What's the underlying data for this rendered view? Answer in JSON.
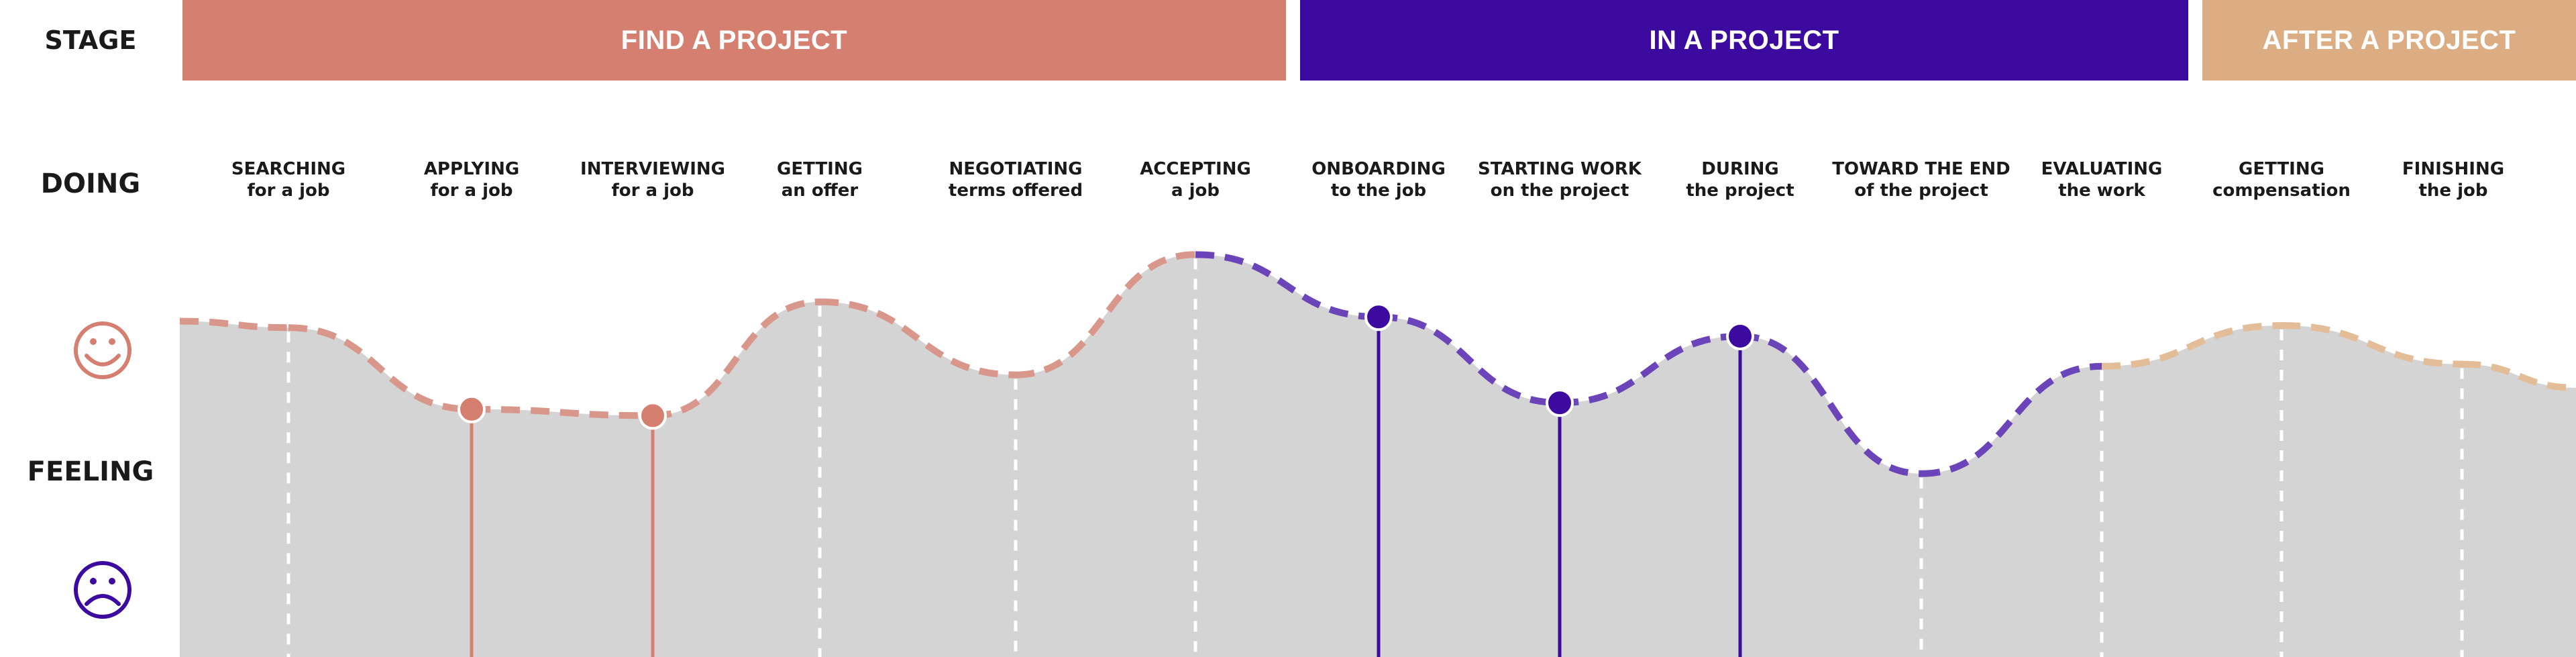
{
  "labels": {
    "stage": "STAGE",
    "doing": "DOING",
    "feeling": "FEELING"
  },
  "stages": [
    {
      "label": "FIND A PROJECT",
      "color": "#d47f70"
    },
    {
      "label": "IN A PROJECT",
      "color": "#3d0aa0"
    },
    {
      "label": "AFTER A PROJECT",
      "color": "#dcac83"
    }
  ],
  "steps": [
    {
      "title": "SEARCHING",
      "subtitle": "for a job",
      "feeling": 0.84,
      "stage": 0,
      "marker": false
    },
    {
      "title": "APPLYING",
      "subtitle": "for a job",
      "feeling": 0.46,
      "stage": 0,
      "marker": true
    },
    {
      "title": "INTERVIEWING",
      "subtitle": "for a job",
      "feeling": 0.43,
      "stage": 0,
      "marker": true
    },
    {
      "title": "GETTING",
      "subtitle": "an offer",
      "feeling": 0.96,
      "stage": 0,
      "marker": false
    },
    {
      "title": "NEGOTIATING",
      "subtitle": "terms offered",
      "feeling": 0.62,
      "stage": 0,
      "marker": false
    },
    {
      "title": "ACCEPTING",
      "subtitle": "a job",
      "feeling": 1.18,
      "stage": 0,
      "marker": false
    },
    {
      "title": "ONBOARDING",
      "subtitle": "to the job",
      "feeling": 0.89,
      "stage": 1,
      "marker": true
    },
    {
      "title": "STARTING WORK",
      "subtitle": "on the project",
      "feeling": 0.49,
      "stage": 1,
      "marker": true
    },
    {
      "title": "DURING",
      "subtitle": "the project",
      "feeling": 0.8,
      "stage": 1,
      "marker": true
    },
    {
      "title": "TOWARD THE END",
      "subtitle": "of the project",
      "feeling": 0.16,
      "stage": 1,
      "marker": false
    },
    {
      "title": "EVALUATING",
      "subtitle": "the work",
      "feeling": 0.66,
      "stage": 1,
      "marker": false
    },
    {
      "title": "GETTING",
      "subtitle": "compensation",
      "feeling": 0.85,
      "stage": 2,
      "marker": false
    },
    {
      "title": "FINISHING",
      "subtitle": "the job",
      "feeling": 0.67,
      "stage": 2,
      "marker": false
    }
  ],
  "colors": {
    "area_fill": "#d4d4d4",
    "happy_icon": "#d47f70",
    "sad_icon": "#3d0aa0",
    "path_find": "#d9968a",
    "path_in": "#6a44b8",
    "path_after": "#e3bc98"
  },
  "icons": {
    "happy": "smiley-face-icon",
    "sad": "sad-face-icon"
  }
}
